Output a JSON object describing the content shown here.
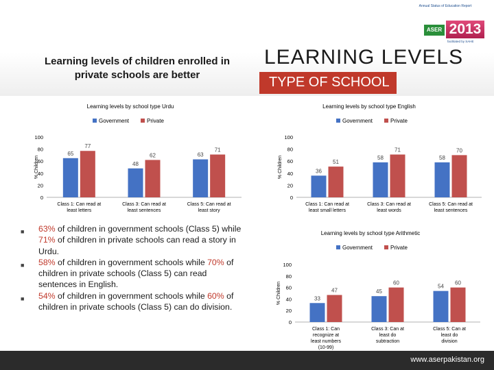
{
  "header": {
    "subtitle": "Learning levels of children enrolled in private schools are better",
    "title": "LEARNING LEVELS",
    "section": "TYPE OF SCHOOL",
    "logo": {
      "tag": "Annual Status of Education Report",
      "aser": "ASER",
      "year": "2013",
      "sub": "facilitated by SAHE"
    }
  },
  "colors": {
    "government": "#4472c4",
    "private": "#c0504d",
    "banner": "#c0392b"
  },
  "chart_data": [
    {
      "type": "bar",
      "title": "Learning levels by school type Urdu",
      "ylabel": "% Children",
      "ylim": [
        0,
        100
      ],
      "yticks": [
        "0",
        "20",
        "40",
        "60",
        "80",
        "100"
      ],
      "categories": [
        "Class 1: Can read at least letters",
        "Class 3: Can read at least sentences",
        "Class 5: Can read at least story"
      ],
      "series": [
        {
          "name": "Government",
          "values": [
            65,
            48,
            63
          ],
          "labels": [
            "65",
            "48",
            "63"
          ]
        },
        {
          "name": "Private",
          "values": [
            77,
            62,
            71
          ],
          "labels": [
            "77",
            "62",
            "71"
          ]
        }
      ]
    },
    {
      "type": "bar",
      "title": "Learning levels by school type English",
      "ylabel": "% Children",
      "ylim": [
        0,
        100
      ],
      "yticks": [
        "0",
        "20",
        "40",
        "60",
        "80",
        "100"
      ],
      "categories": [
        "Class 1: Can read at least small letters",
        "Class 3: Can read at least words",
        "Class 5: Can read at least sentences"
      ],
      "series": [
        {
          "name": "Government",
          "values": [
            36,
            58,
            58
          ],
          "labels": [
            "36",
            "58",
            "58"
          ]
        },
        {
          "name": "Private",
          "values": [
            51,
            71,
            70
          ],
          "labels": [
            "51",
            "71",
            "70"
          ]
        }
      ]
    },
    {
      "type": "bar",
      "title": "Learning levels by school type Arithmetic",
      "ylabel": "% Children",
      "ylim": [
        0,
        100
      ],
      "yticks": [
        "0",
        "20",
        "40",
        "60",
        "80",
        "100"
      ],
      "categories": [
        "Class 1: Can recognize at least numbers (10-99)",
        "Class 3: Can at least do subtraction",
        "Class 5: Can at least do division"
      ],
      "series": [
        {
          "name": "Government",
          "values": [
            33,
            45,
            54
          ],
          "labels": [
            "33",
            "45",
            "54"
          ]
        },
        {
          "name": "Private",
          "values": [
            47,
            60,
            60
          ],
          "labels": [
            "47",
            "60",
            "60"
          ]
        }
      ]
    }
  ],
  "bullets": [
    {
      "pct1": "63%",
      "text1": " of children in government schools (Class 5) while ",
      "pct2": "71%",
      "text2": "  of children in private schools can read a story in Urdu."
    },
    {
      "pct1": "58%",
      "text1": " of children in government schools while ",
      "pct2": "70%",
      "text2": " of children in private schools (Class 5) can read sentences in English."
    },
    {
      "pct1": "54%",
      "text1": " of children in government schools while ",
      "pct2": "60%",
      "text2": " of children in private schools (Class 5) can do division."
    }
  ],
  "footer": {
    "url": "www.aserpakistan.org"
  }
}
